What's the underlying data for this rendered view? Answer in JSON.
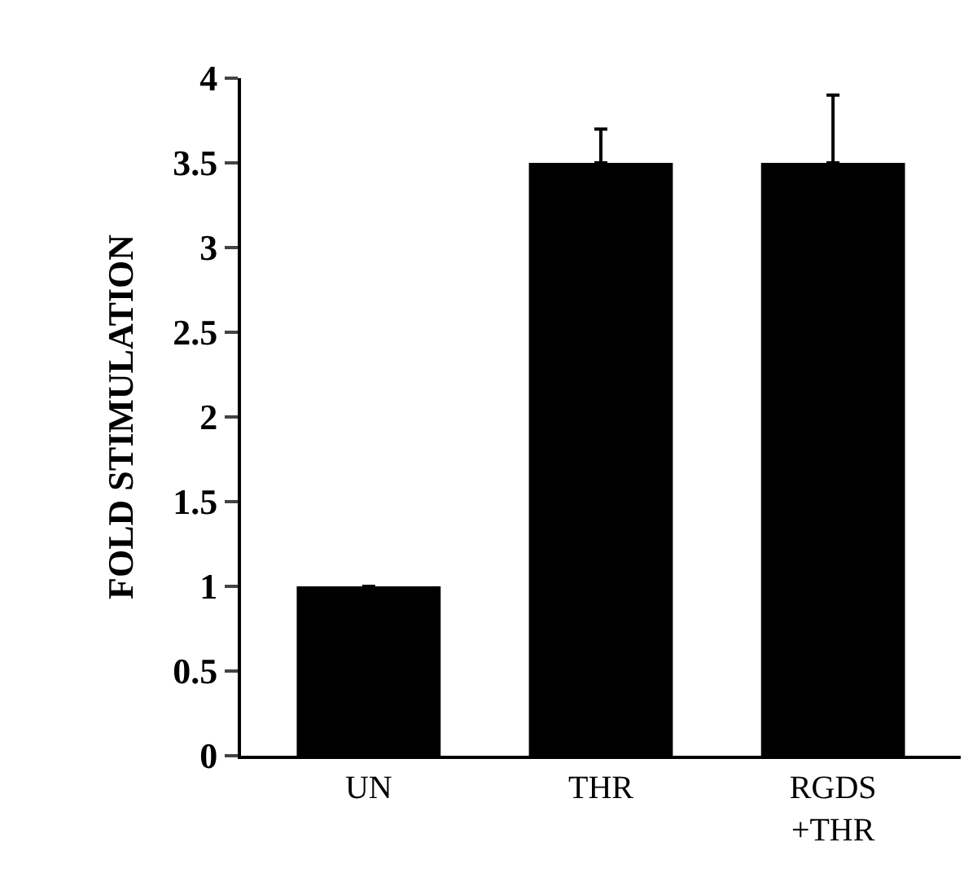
{
  "chart_data": {
    "type": "bar",
    "ylabel": "FOLD STIMULATION",
    "categories": [
      "UN",
      "THR",
      "RGDS\n+THR"
    ],
    "series": [
      {
        "color": "#000000",
        "values": [
          1.0,
          3.5,
          3.5
        ],
        "errors": [
          null,
          [
            3.5,
            3.7
          ],
          [
            3.5,
            3.9
          ]
        ]
      }
    ],
    "ylim": [
      0,
      4
    ],
    "yticks": [
      0,
      0.5,
      1,
      1.5,
      2,
      2.5,
      3,
      3.5,
      4
    ]
  }
}
